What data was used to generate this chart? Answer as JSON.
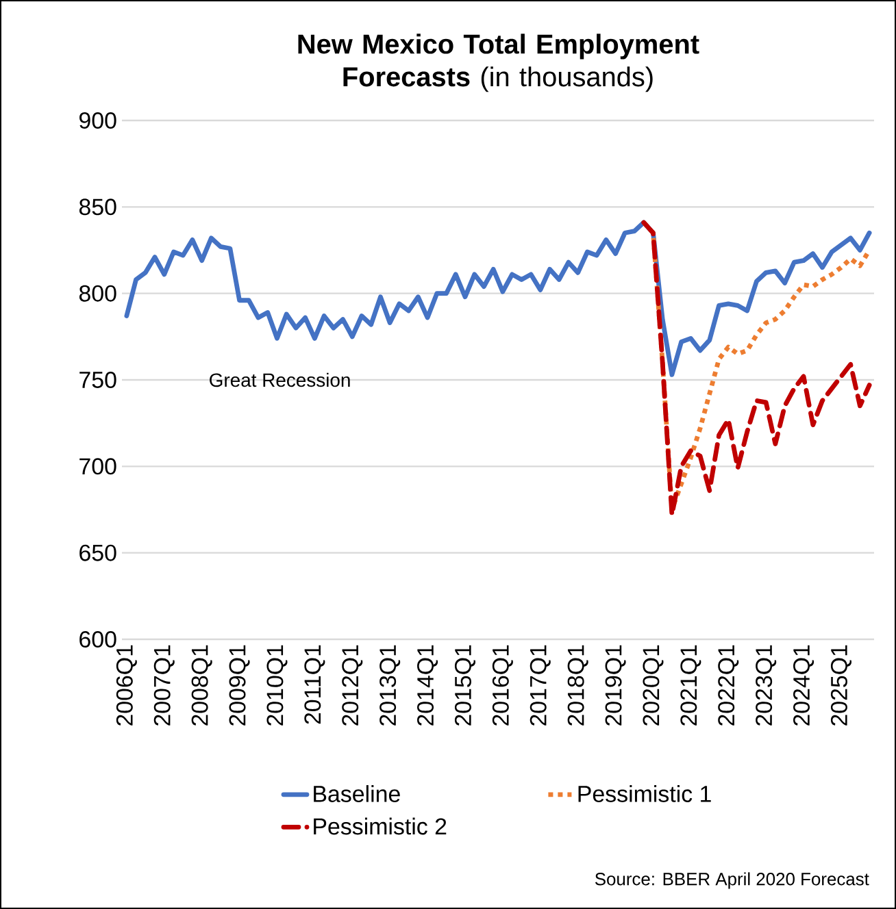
{
  "chart_data": {
    "type": "line",
    "title": "**New Mexico Total Employment Forecasts** (in thousands)",
    "categories": [
      "2006Q1",
      null,
      null,
      null,
      "2007Q1",
      null,
      null,
      null,
      "2008Q1",
      null,
      null,
      null,
      "2009Q1",
      null,
      null,
      null,
      "2010Q1",
      null,
      null,
      null,
      "2011Q1",
      null,
      null,
      null,
      "2012Q1",
      null,
      null,
      null,
      "2013Q1",
      null,
      null,
      null,
      "2014Q1",
      null,
      null,
      null,
      "2015Q1",
      null,
      null,
      null,
      "2016Q1",
      null,
      null,
      null,
      "2017Q1",
      null,
      null,
      null,
      "2018Q1",
      null,
      null,
      null,
      "2019Q1",
      null,
      null,
      null,
      "2020Q1",
      null,
      null,
      null,
      "2021Q1",
      null,
      null,
      null,
      "2022Q1",
      null,
      null,
      null,
      "2023Q1",
      null,
      null,
      null,
      "2024Q1",
      null,
      null,
      null,
      "2025Q1",
      null,
      null,
      null
    ],
    "series": [
      {
        "name": "Baseline",
        "color": "#4472c4",
        "line_style": "solid",
        "values": [
          787,
          808,
          812,
          821,
          811,
          824,
          822,
          831,
          819,
          832,
          827,
          826,
          796,
          796,
          786,
          789,
          774,
          788,
          780,
          786,
          774,
          787,
          780,
          785,
          775,
          787,
          782,
          798,
          783,
          794,
          790,
          798,
          786,
          800,
          800,
          811,
          798,
          811,
          804,
          814,
          801,
          811,
          808,
          811,
          802,
          814,
          808,
          818,
          812,
          824,
          822,
          831,
          823,
          835,
          836,
          841,
          835,
          785,
          753,
          772,
          774,
          767,
          773,
          793,
          794,
          793,
          790,
          807,
          812,
          813,
          806,
          818,
          819,
          823,
          815,
          824,
          828,
          832,
          825,
          835
        ]
      },
      {
        "name": "Pessimistic 1",
        "color": "#ed7d31",
        "line_style": "dotted",
        "values": [
          null,
          null,
          null,
          null,
          null,
          null,
          null,
          null,
          null,
          null,
          null,
          null,
          null,
          null,
          null,
          null,
          null,
          null,
          null,
          null,
          null,
          null,
          null,
          null,
          null,
          null,
          null,
          null,
          null,
          null,
          null,
          null,
          null,
          null,
          null,
          null,
          null,
          null,
          null,
          null,
          null,
          null,
          null,
          null,
          null,
          null,
          null,
          null,
          null,
          null,
          null,
          null,
          null,
          null,
          null,
          841,
          835,
          760,
          675,
          690,
          705,
          722,
          742,
          762,
          769,
          765,
          767,
          776,
          783,
          785,
          790,
          798,
          805,
          804,
          808,
          811,
          815,
          820,
          816,
          825
        ]
      },
      {
        "name": "Pessimistic 2",
        "color": "#c00000",
        "line_style": "dashed",
        "values": [
          null,
          null,
          null,
          null,
          null,
          null,
          null,
          null,
          null,
          null,
          null,
          null,
          null,
          null,
          null,
          null,
          null,
          null,
          null,
          null,
          null,
          null,
          null,
          null,
          null,
          null,
          null,
          null,
          null,
          null,
          null,
          null,
          null,
          null,
          null,
          null,
          null,
          null,
          null,
          null,
          null,
          null,
          null,
          null,
          null,
          null,
          null,
          null,
          null,
          null,
          null,
          null,
          null,
          null,
          null,
          841,
          835,
          760,
          672,
          700,
          709,
          706,
          686,
          718,
          727,
          699,
          720,
          738,
          737,
          713,
          735,
          745,
          752,
          724,
          738,
          745,
          752,
          759,
          735,
          747
        ]
      }
    ],
    "ylim": [
      600,
      900
    ],
    "yticks": [
      600,
      650,
      700,
      750,
      800,
      850,
      900
    ],
    "grid": "y",
    "legend": "bottom",
    "annotations": [
      "Great Recession",
      "Source: BBER April 2020 Forecast"
    ]
  }
}
